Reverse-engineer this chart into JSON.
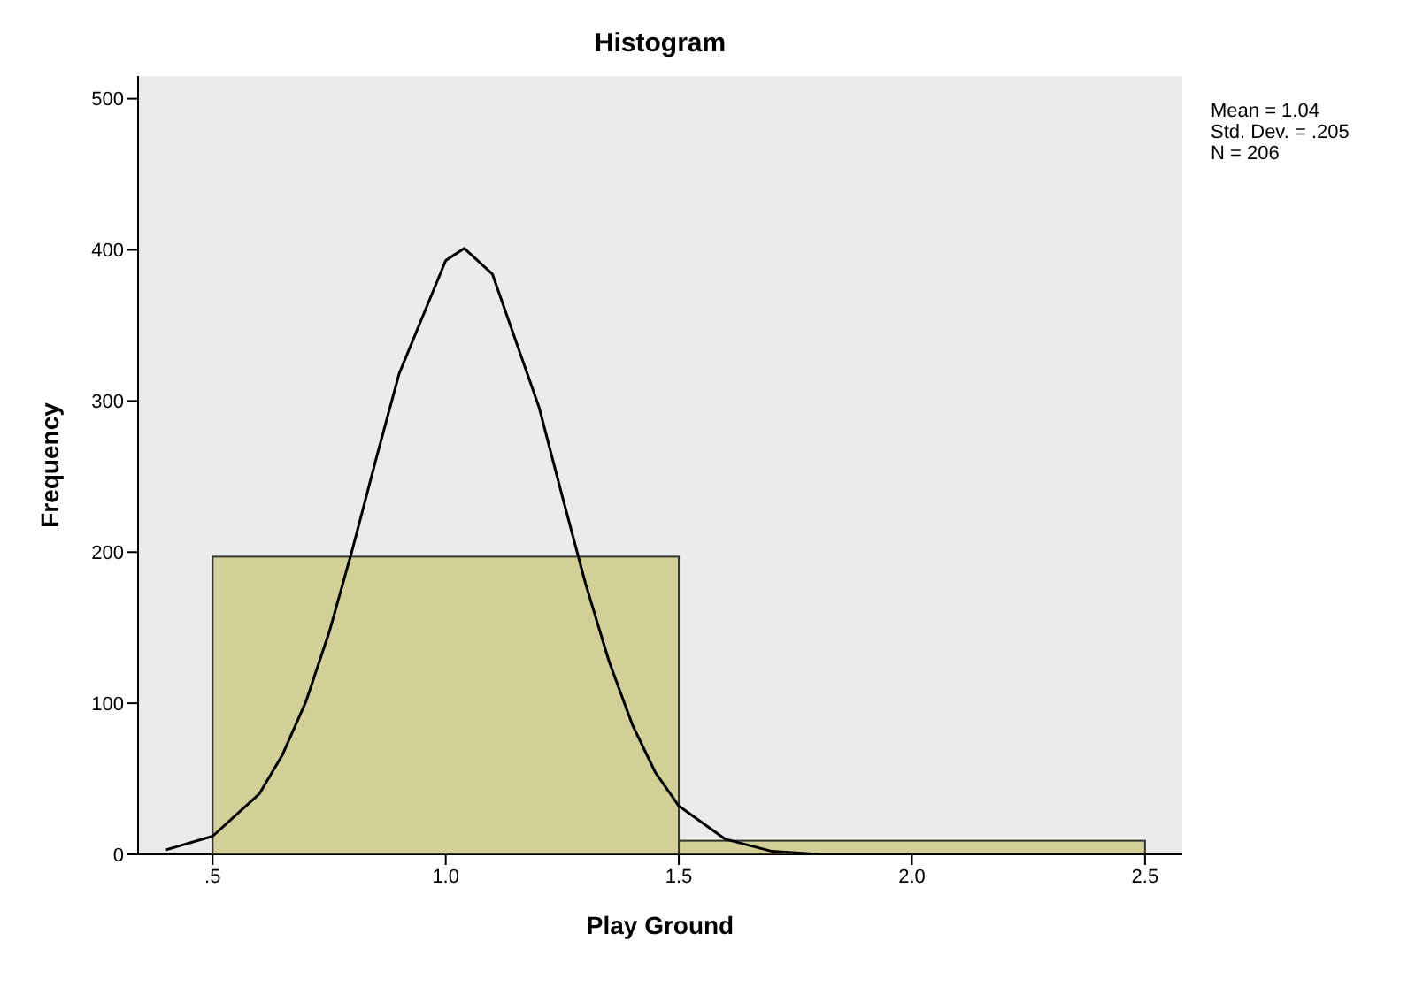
{
  "chart_data": {
    "type": "histogram",
    "title": "Histogram",
    "xlabel": "Play Ground",
    "ylabel": "Frequency",
    "bins": [
      0.5,
      1.5,
      2.5
    ],
    "values": [
      197,
      9
    ],
    "color": "#d3cf98",
    "series": [
      {
        "type": "line",
        "color": "#000000",
        "x": [
          0.4,
          0.5,
          0.6,
          0.65,
          0.7,
          0.75,
          0.8,
          0.85,
          0.9,
          1.0,
          1.04,
          1.1,
          1.2,
          1.25,
          1.3,
          1.35,
          1.4,
          1.45,
          1.5,
          1.6,
          1.7,
          1.8,
          2.0,
          2.58
        ],
        "values": [
          3,
          12,
          40,
          66,
          101,
          147,
          202,
          261,
          318,
          393,
          401,
          384,
          296,
          237,
          179,
          128,
          86,
          54,
          32,
          10,
          2,
          0,
          0,
          0
        ]
      }
    ],
    "marker": "none",
    "xlim": [
      0.34,
      2.58
    ],
    "xticks": [
      {
        "value": 0.5,
        "label": ".5"
      },
      {
        "value": 1,
        "label": "1.0"
      },
      1.5,
      {
        "value": 2,
        "label": "2.0"
      },
      2.5
    ],
    "ylim": [
      0,
      515
    ],
    "yticks": [
      0,
      100,
      200,
      300,
      400,
      500
    ],
    "annotations": [
      "Mean = 1.04",
      "Std. Dev. = .205",
      "N = 206"
    ]
  }
}
